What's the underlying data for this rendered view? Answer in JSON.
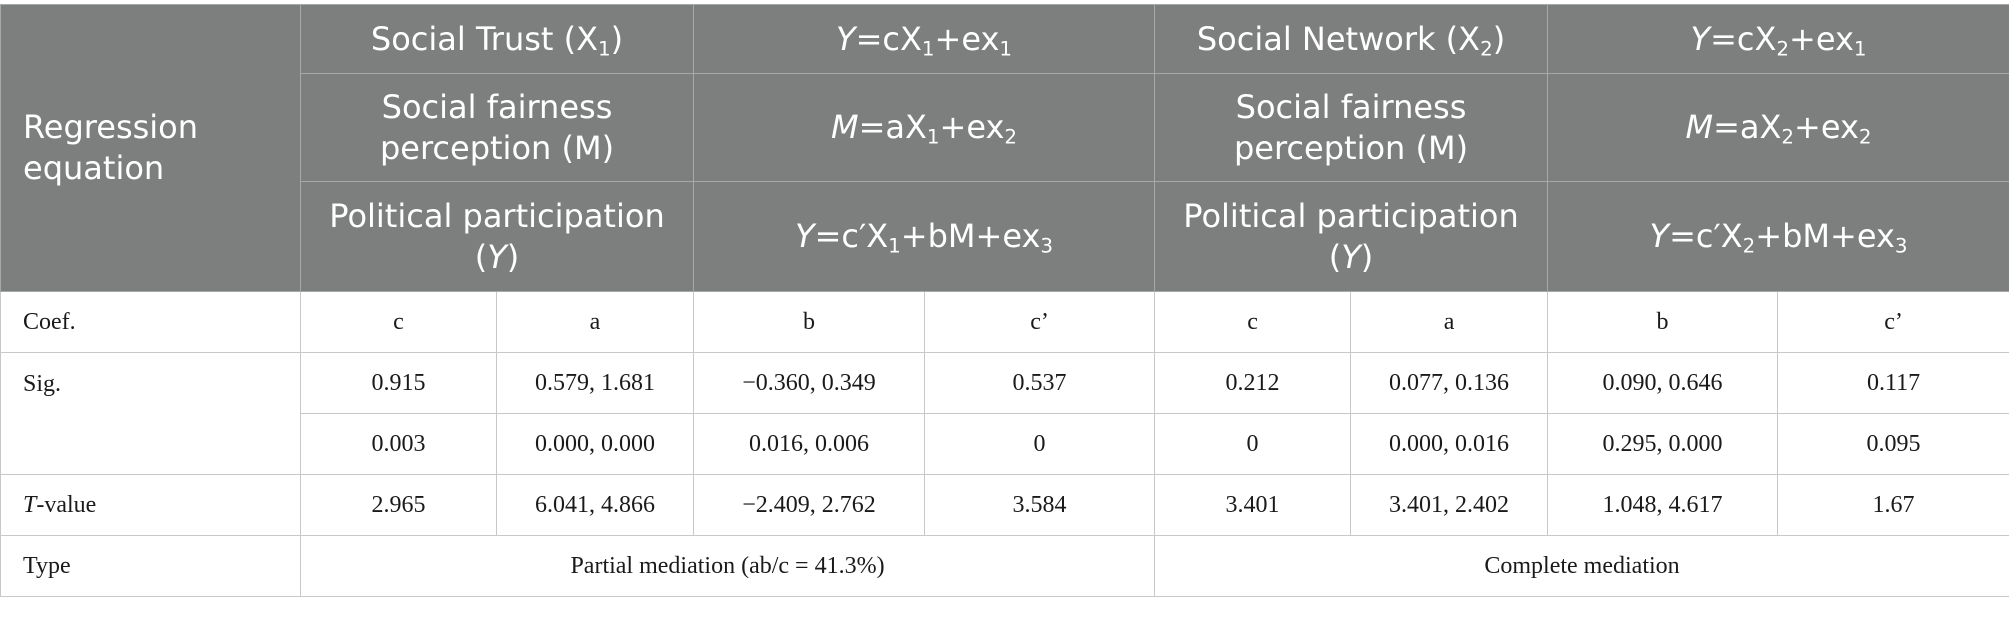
{
  "header": {
    "row_label": "Regression equation",
    "rows": [
      {
        "g1_var": {
          "text": "Social Trust (X",
          "sub": "1",
          "tail": ")"
        },
        "g1_eq": {
          "lhs": "Y",
          "body": "=cX",
          "sub1": "1",
          "body2": "+ex",
          "sub2": "1"
        },
        "g2_var": {
          "text": "Social Network (X",
          "sub": "2",
          "tail": ")"
        },
        "g2_eq": {
          "lhs": "Y",
          "body": "=cX",
          "sub1": "2",
          "body2": "+ex",
          "sub2": "1"
        }
      },
      {
        "g1_var": {
          "text": "Social fairness perception (M)"
        },
        "g1_eq": {
          "lhs": "M",
          "body": "=aX",
          "sub1": "1",
          "body2": "+ex",
          "sub2": "2"
        },
        "g2_var": {
          "text": "Social fairness perception (M)"
        },
        "g2_eq": {
          "lhs": "M",
          "body": "=aX",
          "sub1": "2",
          "body2": "+ex",
          "sub2": "2"
        }
      },
      {
        "g1_var": {
          "text": "Political participation (",
          "it": "Y",
          "tail": ")"
        },
        "g1_eq": {
          "lhs": "Y",
          "body": "=c′X",
          "sub1": "1",
          "body2": "+bM+ex",
          "sub2": "3"
        },
        "g2_var": {
          "text": "Political participation (",
          "it": "Y",
          "tail": ")"
        },
        "g2_eq": {
          "lhs": "Y",
          "body": "=c′X",
          "sub1": "2",
          "body2": "+bM+ex",
          "sub2": "3"
        }
      }
    ]
  },
  "body": {
    "coef": {
      "label": "Coef.",
      "values": [
        "c",
        "a",
        "b",
        "c’",
        "c",
        "a",
        "b",
        "c’"
      ]
    },
    "sig": {
      "label": "Sig.",
      "row1": [
        "0.915",
        "0.579, 1.681",
        "−0.360, 0.349",
        "0.537",
        "0.212",
        "0.077, 0.136",
        "0.090, 0.646",
        "0.117"
      ],
      "row2": [
        "0.003",
        "0.000, 0.000",
        "0.016, 0.006",
        "0",
        "0",
        "0.000, 0.016",
        "0.295, 0.000",
        "0.095"
      ]
    },
    "tvalue": {
      "label_it": "T",
      "label_rest": "-value",
      "values": [
        "2.965",
        "6.041, 4.866",
        "−2.409, 2.762",
        "3.584",
        "3.401",
        "3.401, 2.402",
        "1.048, 4.617",
        "1.67"
      ]
    },
    "type": {
      "label": "Type",
      "group1": "Partial mediation (ab/c = 41.3%)",
      "group2": "Complete mediation"
    }
  }
}
